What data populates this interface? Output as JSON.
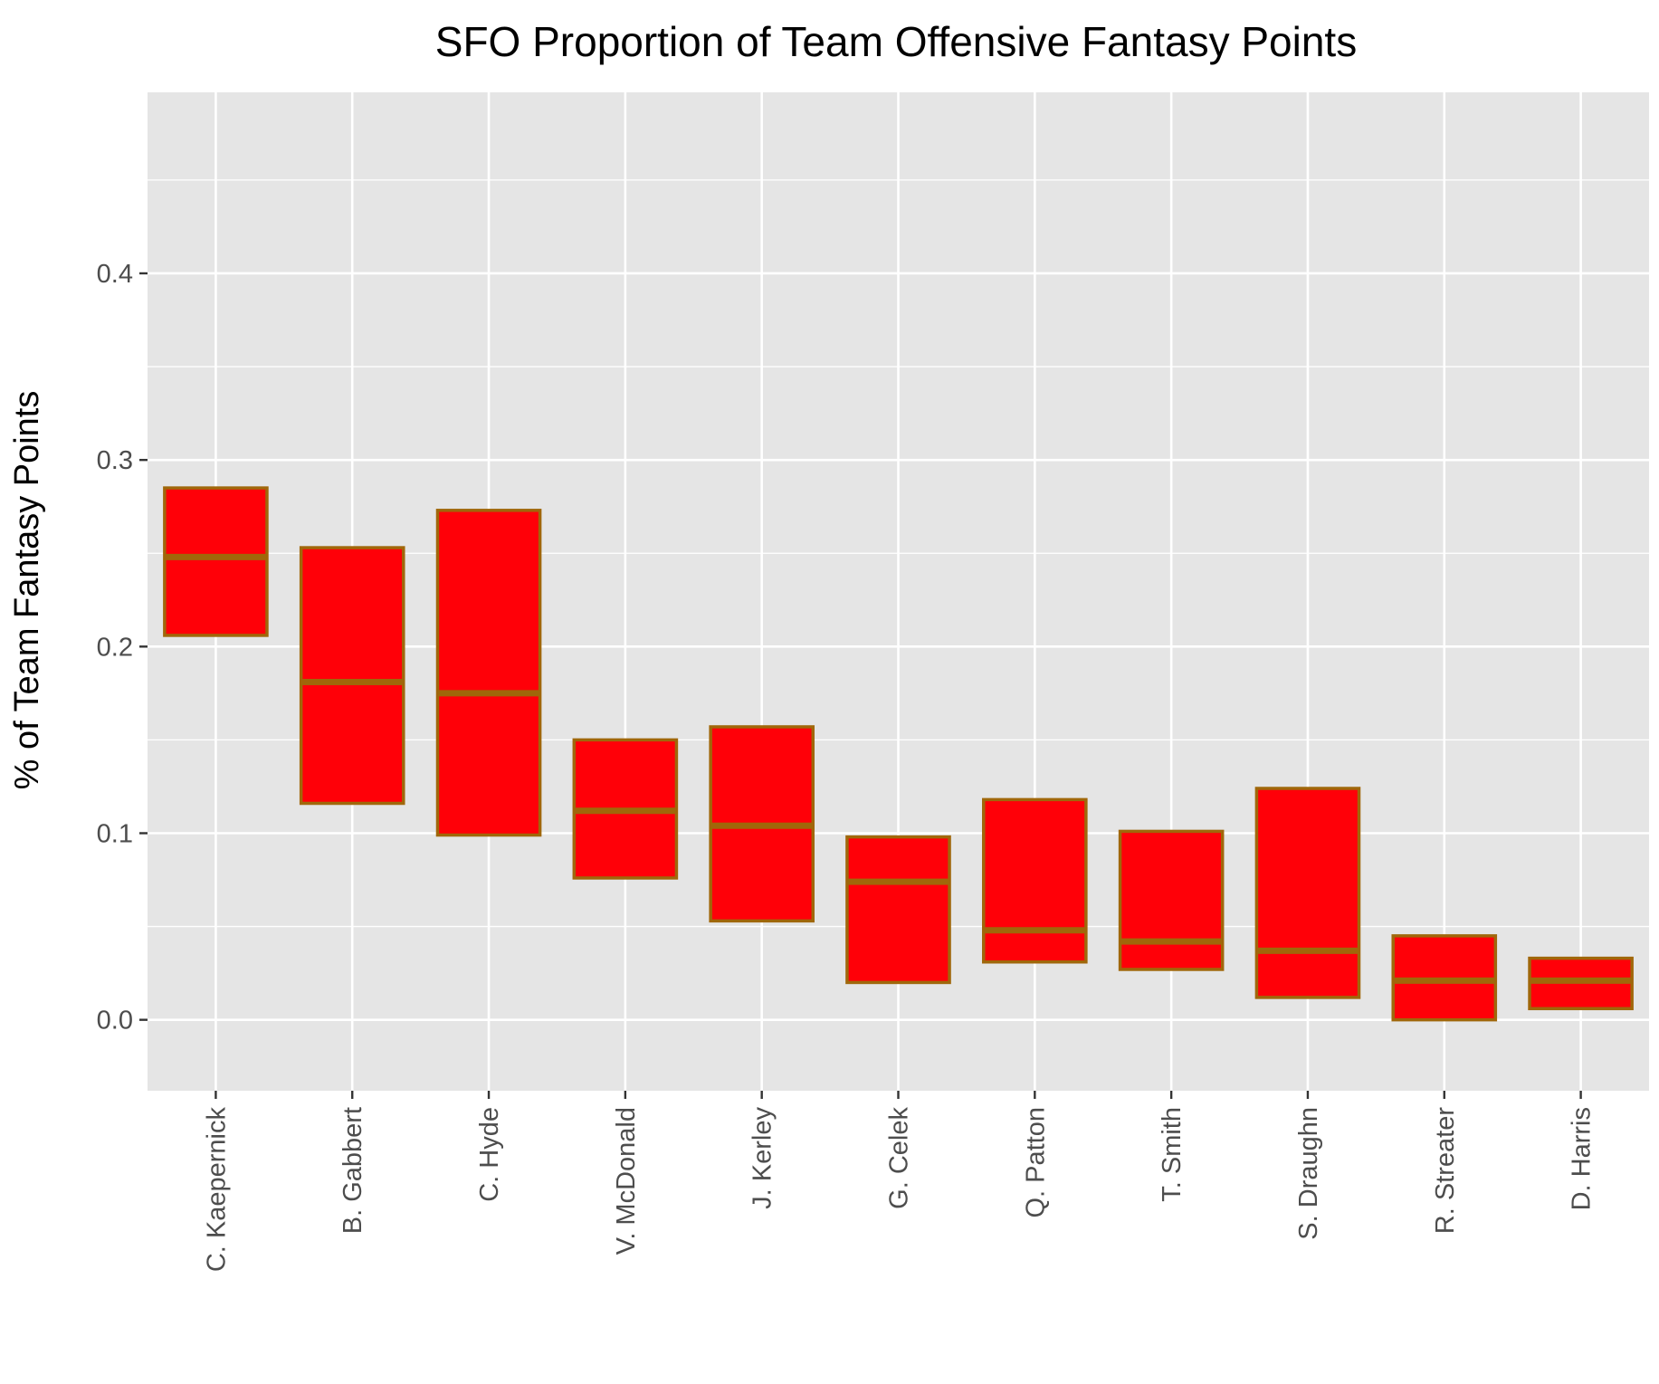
{
  "chart_data": {
    "type": "boxplot",
    "title": "SFO Proportion of Team Offensive Fantasy Points",
    "xlabel": "",
    "ylabel": "% of Team Fantasy Points",
    "ylim": [
      -0.038,
      0.497
    ],
    "yticks": [
      "0.0",
      "0.1",
      "0.2",
      "0.3",
      "0.4"
    ],
    "grid": true,
    "legend": "none",
    "categories": [
      "C. Kaepernick",
      "B. Gabbert",
      "C. Hyde",
      "V. McDonald",
      "J. Kerley",
      "G. Celek",
      "Q. Patton",
      "T. Smith",
      "S. Draughn",
      "R. Streater",
      "D. Harris"
    ],
    "boxes": [
      {
        "q1": 0.206,
        "median": 0.248,
        "q3": 0.285
      },
      {
        "q1": 0.116,
        "median": 0.181,
        "q3": 0.253
      },
      {
        "q1": 0.099,
        "median": 0.175,
        "q3": 0.273
      },
      {
        "q1": 0.076,
        "median": 0.112,
        "q3": 0.15
      },
      {
        "q1": 0.053,
        "median": 0.104,
        "q3": 0.157
      },
      {
        "q1": 0.02,
        "median": 0.074,
        "q3": 0.098
      },
      {
        "q1": 0.031,
        "median": 0.048,
        "q3": 0.118
      },
      {
        "q1": 0.027,
        "median": 0.042,
        "q3": 0.101
      },
      {
        "q1": 0.012,
        "median": 0.037,
        "q3": 0.124
      },
      {
        "q1": 0.0,
        "median": 0.021,
        "q3": 0.045
      },
      {
        "q1": 0.006,
        "median": 0.021,
        "q3": 0.033
      }
    ],
    "colors": {
      "panel": "#e5e5e5",
      "grid": "#ffffff",
      "box_fill": "#ff0008",
      "box_stroke": "#a0670a",
      "tick_text": "#4d4d4d"
    }
  }
}
